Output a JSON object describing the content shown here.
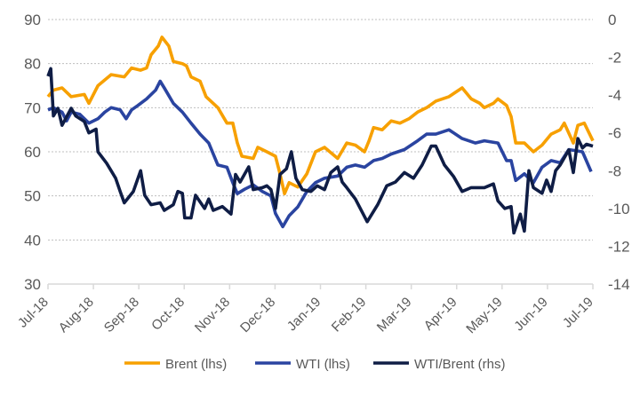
{
  "chart_data": {
    "type": "line",
    "title": "",
    "x_unit": "months since Jul-18",
    "x_tick_labels": [
      "Jul-18",
      "Aug-18",
      "Sep-18",
      "Oct-18",
      "Nov-18",
      "Dec-18",
      "Jan-19",
      "Feb-19",
      "Mar-19",
      "Apr-19",
      "May-19",
      "Jun-19",
      "Jul-19"
    ],
    "left_axis": {
      "ylim": [
        30,
        90
      ],
      "ticks": [
        "30",
        "40",
        "50",
        "60",
        "70",
        "80",
        "90"
      ],
      "tick_values": [
        30,
        40,
        50,
        60,
        70,
        80,
        90
      ]
    },
    "right_axis": {
      "ylim": [
        -14,
        0
      ],
      "ticks": [
        "-14",
        "-12",
        "-10",
        "-8",
        "-6",
        "-4",
        "-2",
        "0"
      ],
      "tick_values": [
        -14,
        -12,
        -10,
        -8,
        -6,
        -4,
        -2,
        0
      ]
    },
    "grid": true,
    "legend_position": "bottom",
    "series": [
      {
        "name": "Brent (lhs)",
        "axis": "left",
        "color": "#F7A000",
        "x": [
          0,
          0.12,
          0.31,
          0.51,
          0.8,
          0.9,
          1.1,
          1.39,
          1.68,
          1.84,
          2.04,
          2.17,
          2.27,
          2.43,
          2.51,
          2.66,
          2.76,
          2.96,
          3.05,
          3.15,
          3.35,
          3.48,
          3.74,
          3.94,
          4.07,
          4.17,
          4.27,
          4.52,
          4.62,
          4.82,
          5.01,
          5.11,
          5.21,
          5.31,
          5.5,
          5.7,
          5.89,
          6.09,
          6.38,
          6.58,
          6.77,
          6.97,
          7.07,
          7.17,
          7.36,
          7.56,
          7.75,
          7.95,
          8.14,
          8.34,
          8.54,
          8.83,
          9.12,
          9.32,
          9.51,
          9.61,
          9.81,
          9.91,
          10.1,
          10.2,
          10.3,
          10.49,
          10.69,
          10.88,
          11.08,
          11.28,
          11.37,
          11.57,
          11.67,
          11.81,
          12
        ],
        "values": [
          72.5,
          74,
          74.5,
          72.5,
          73,
          71,
          75,
          77.5,
          77,
          79,
          78.5,
          79,
          82,
          84,
          86,
          84,
          80.5,
          80,
          79.5,
          77,
          76,
          72.5,
          70,
          66.5,
          66.5,
          62,
          59,
          58.5,
          61,
          60,
          59,
          55,
          50.5,
          53,
          52,
          55,
          60,
          61,
          58.5,
          62,
          61.5,
          60,
          62.5,
          65.5,
          65,
          67,
          66.5,
          67.5,
          69,
          70,
          71.5,
          72.5,
          74.5,
          72,
          71,
          70,
          71,
          72,
          70.5,
          68,
          62,
          62,
          60,
          61.5,
          64,
          65,
          66.5,
          62,
          66,
          66.5,
          62.5
        ]
      },
      {
        "name": "WTI (lhs)",
        "axis": "left",
        "color": "#2A44A0",
        "x": [
          0,
          0.12,
          0.31,
          0.41,
          0.51,
          0.7,
          0.9,
          1.1,
          1.25,
          1.39,
          1.59,
          1.72,
          1.84,
          1.98,
          2.17,
          2.37,
          2.47,
          2.56,
          2.76,
          2.96,
          3.15,
          3.35,
          3.54,
          3.74,
          3.94,
          4.07,
          4.17,
          4.33,
          4.52,
          4.72,
          4.91,
          5.01,
          5.17,
          5.31,
          5.5,
          5.7,
          5.89,
          6.09,
          6.38,
          6.58,
          6.77,
          6.97,
          7.17,
          7.36,
          7.56,
          7.85,
          8.14,
          8.34,
          8.54,
          8.83,
          9.12,
          9.41,
          9.61,
          9.91,
          10.1,
          10.2,
          10.3,
          10.49,
          10.69,
          10.88,
          11.08,
          11.28,
          11.47,
          11.77,
          11.96
        ],
        "values": [
          69.5,
          70,
          69,
          67,
          69,
          68.5,
          66.5,
          67.5,
          69,
          70,
          69.5,
          67.5,
          69.5,
          70.5,
          72,
          74,
          76,
          74.5,
          71,
          69,
          66.5,
          64,
          62,
          57,
          56.5,
          53,
          50.5,
          51.5,
          52.5,
          51,
          50,
          46,
          43,
          45.5,
          47.5,
          51,
          53,
          54,
          54.5,
          56.5,
          57,
          56.5,
          58,
          58.5,
          59.5,
          60.5,
          62.5,
          64,
          64,
          65,
          63,
          62,
          62.5,
          62,
          58,
          58,
          53.5,
          55,
          53,
          56.5,
          58,
          57.5,
          60.5,
          60,
          55.5
        ]
      },
      {
        "name": "WTI/Brent (rhs)",
        "axis": "right",
        "color": "#0F1D45",
        "x": [
          0,
          0.06,
          0.12,
          0.22,
          0.31,
          0.51,
          0.61,
          0.8,
          0.9,
          1.06,
          1.1,
          1.29,
          1.49,
          1.59,
          1.68,
          1.88,
          2.04,
          2.13,
          2.27,
          2.47,
          2.56,
          2.76,
          2.86,
          2.96,
          3.01,
          3.15,
          3.25,
          3.45,
          3.54,
          3.64,
          3.84,
          4.03,
          4.13,
          4.23,
          4.42,
          4.52,
          4.72,
          4.82,
          4.91,
          5.01,
          5.11,
          5.25,
          5.36,
          5.46,
          5.6,
          5.79,
          5.93,
          6.09,
          6.23,
          6.38,
          6.48,
          6.58,
          6.77,
          7.03,
          7.26,
          7.46,
          7.65,
          7.85,
          8.05,
          8.24,
          8.44,
          8.54,
          8.73,
          8.93,
          9.12,
          9.32,
          9.61,
          9.81,
          9.91,
          10.06,
          10.2,
          10.26,
          10.4,
          10.49,
          10.59,
          10.69,
          10.88,
          10.98,
          11.08,
          11.18,
          11.28,
          11.47,
          11.57,
          11.67,
          11.77,
          11.86,
          12
        ],
        "values": [
          -3.0,
          -2.6,
          -5.1,
          -4.7,
          -5.6,
          -4.7,
          -5.1,
          -5.4,
          -6.0,
          -5.8,
          -7.0,
          -7.6,
          -8.4,
          -9.1,
          -9.7,
          -9.1,
          -8.0,
          -9.3,
          -9.8,
          -9.7,
          -10.1,
          -9.8,
          -9.1,
          -9.2,
          -10.5,
          -10.5,
          -9.3,
          -10.0,
          -9.5,
          -10.1,
          -9.9,
          -10.3,
          -8.2,
          -8.6,
          -7.8,
          -9.0,
          -8.9,
          -8.8,
          -9.0,
          -10.0,
          -8.2,
          -7.9,
          -7.0,
          -8.4,
          -9.0,
          -9.1,
          -8.8,
          -9.0,
          -8.1,
          -7.8,
          -8.6,
          -8.9,
          -9.5,
          -10.7,
          -9.8,
          -8.8,
          -8.6,
          -8.1,
          -8.4,
          -7.7,
          -6.7,
          -6.7,
          -7.7,
          -8.3,
          -9.1,
          -8.9,
          -8.9,
          -8.7,
          -9.6,
          -10.0,
          -9.9,
          -11.3,
          -10.3,
          -11.2,
          -8.0,
          -8.9,
          -9.2,
          -8.5,
          -9.1,
          -8.0,
          -7.7,
          -6.9,
          -8.1,
          -6.3,
          -6.8,
          -6.6,
          -6.7
        ]
      }
    ]
  }
}
